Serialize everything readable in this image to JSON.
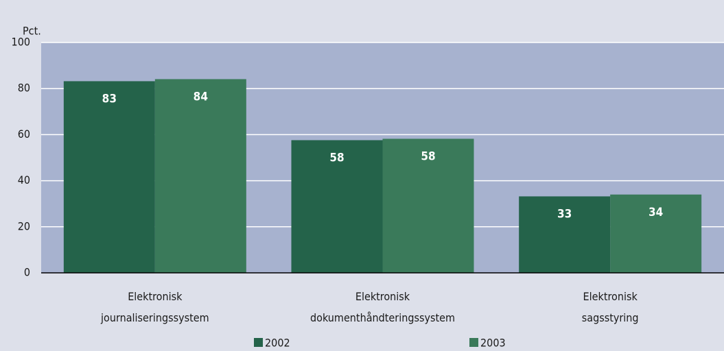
{
  "chart_data": {
    "type": "bar",
    "y_label": "Pct.",
    "categories": [
      [
        "Elektronisk",
        "journaliseringssystem"
      ],
      [
        "Elektronisk",
        "dokumenthåndteringssystem"
      ],
      [
        "Elektronisk",
        "sagsstyring"
      ]
    ],
    "series": [
      {
        "name": "2002",
        "color": "#24634a",
        "values": [
          83.2,
          57.6,
          33.2
        ],
        "value_labels": [
          "83",
          "58",
          "33"
        ]
      },
      {
        "name": "2003",
        "color": "#3a7a5a",
        "values": [
          84.1,
          58.2,
          34.0
        ],
        "value_labels": [
          "84",
          "58",
          "34"
        ]
      }
    ],
    "ylim": [
      0,
      100
    ],
    "yticks": [
      0,
      20,
      40,
      60,
      80,
      100
    ],
    "grid": true,
    "legend": "bottom"
  }
}
